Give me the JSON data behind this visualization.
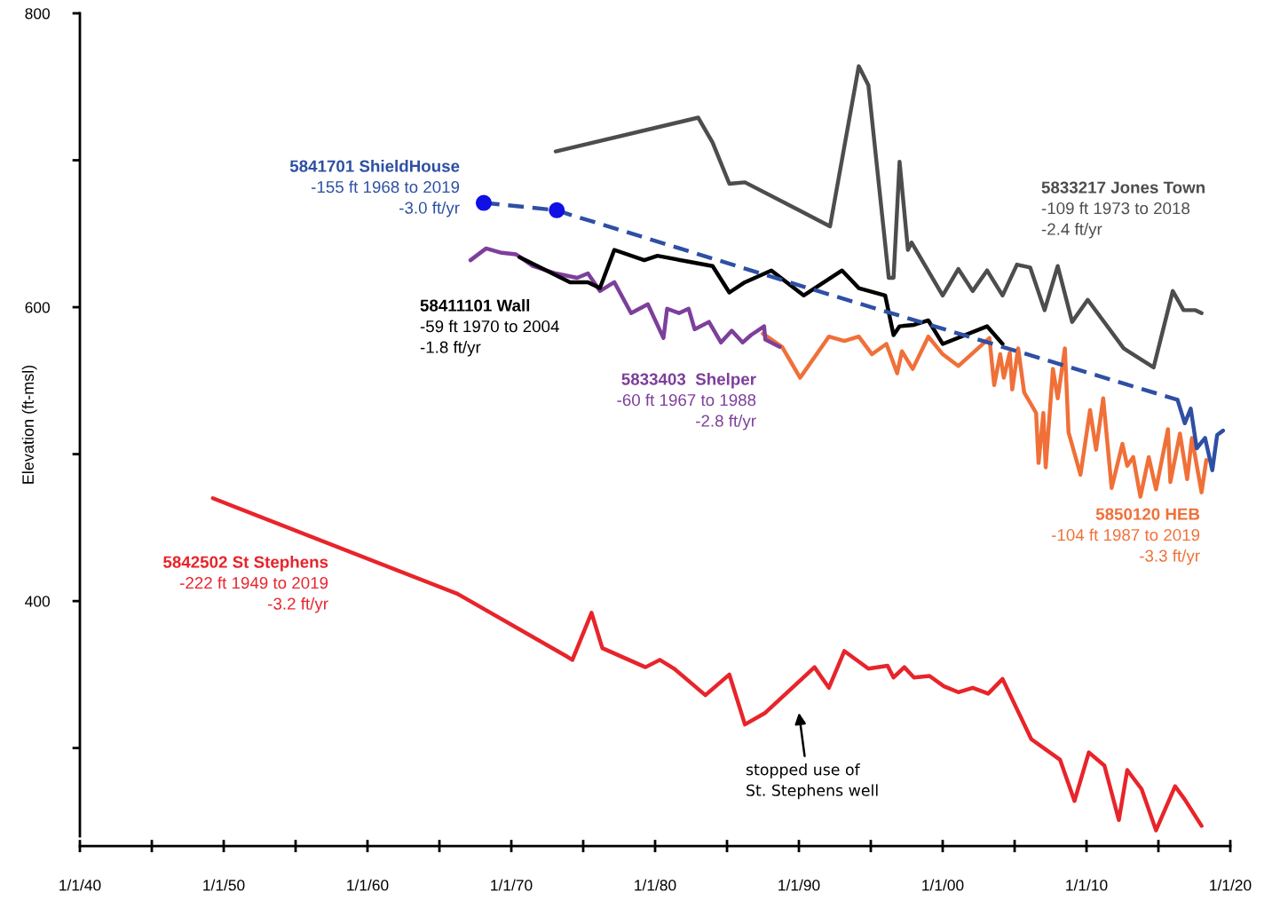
{
  "chart_data": {
    "type": "line",
    "ylabel": "Elevation (ft-msl)",
    "xlim": [
      "1940-01-01",
      "2020-01-01"
    ],
    "xticks": [
      {
        "value": "1940-01-01",
        "label": "1/1/40"
      },
      {
        "value": "1945-01-01",
        "label": null
      },
      {
        "value": "1950-01-01",
        "label": "1/1/50"
      },
      {
        "value": "1955-01-01",
        "label": null
      },
      {
        "value": "1960-01-01",
        "label": "1/1/60"
      },
      {
        "value": "1965-01-01",
        "label": null
      },
      {
        "value": "1970-01-01",
        "label": "1/1/70"
      },
      {
        "value": "1975-01-01",
        "label": null
      },
      {
        "value": "1980-01-01",
        "label": "1/1/80"
      },
      {
        "value": "1985-01-01",
        "label": null
      },
      {
        "value": "1990-01-01",
        "label": "1/1/90"
      },
      {
        "value": "1995-01-01",
        "label": null
      },
      {
        "value": "2000-01-01",
        "label": "1/1/00"
      },
      {
        "value": "2005-01-01",
        "label": null
      },
      {
        "value": "2010-01-01",
        "label": "1/1/10"
      },
      {
        "value": "2015-01-01",
        "label": null
      },
      {
        "value": "2020-01-01",
        "label": "1/1/20"
      }
    ],
    "ylim": [
      240,
      800
    ],
    "yticks": [
      {
        "value": 300,
        "label": null
      },
      400,
      {
        "value": 500,
        "label": null
      },
      600,
      {
        "value": 700,
        "label": null
      },
      800
    ],
    "grid": false,
    "legend": false,
    "annotations": [
      "stopped use of\nSt. Stephens well"
    ],
    "series": [
      {
        "name": "5842502 St Stephens\n-222 ft 1949 to 2019\n-3.2 ft/yr",
        "color": "#e8242b",
        "x": [
          "1949-04",
          "1966-04",
          "1973-12",
          "1974-04",
          "1975-08",
          "1976-05",
          "1979-05",
          "1980-05",
          "1981-05",
          "1983-07",
          "1985-03",
          "1986-04",
          "1987-09",
          "1991-02",
          "1992-02",
          "1993-03",
          "1994-11",
          "1996-03",
          "1996-08",
          "1997-05",
          "1998-01",
          "1999-02",
          "2000-02",
          "2001-02",
          "2002-02",
          "2003-03",
          "2004-03",
          "2006-03",
          "2008-03",
          "2009-03",
          "2010-03",
          "2011-04",
          "2012-04",
          "2012-11",
          "2013-11",
          "2014-11",
          "2016-03",
          "2016-11",
          "2018-01"
        ],
        "values": [
          470,
          405,
          362,
          360,
          392,
          368,
          355,
          360,
          354,
          336,
          350,
          316,
          324,
          355,
          341,
          366,
          354,
          356,
          348,
          355,
          348,
          349,
          342,
          338,
          341,
          337,
          347,
          306,
          292,
          264,
          297,
          288,
          251,
          285,
          272,
          244,
          274,
          265,
          247
        ]
      },
      {
        "name": "5841701 ShieldHouse\n-155 ft 1968 to 2019\n-3.0 ft/yr",
        "color": "#2e4fa3",
        "line_style": "dashed",
        "x": [
          "1968-02",
          "1973-03",
          "1974-02",
          "1991-01",
          "2004-03",
          "2016-05"
        ],
        "values": [
          671,
          666,
          663,
          612,
          573,
          537
        ]
      },
      {
        "type": "scatter",
        "marker": "circle",
        "color": "#1010e6",
        "x": [
          "1968-02",
          "1973-03"
        ],
        "values": [
          671,
          666
        ]
      },
      {
        "color": "#2e4fa3",
        "x": [
          "2016-05",
          "2016-11",
          "2017-04",
          "2017-09",
          "2018-04",
          "2018-10",
          "2019-02",
          "2019-07"
        ],
        "values": [
          537,
          521,
          531,
          504,
          511,
          489,
          513,
          516
        ]
      },
      {
        "name": "58411101 Wall\n-59 ft 1970 to 2004\n-1.8 ft/yr",
        "color": "#000000",
        "x": [
          "1970-08",
          "1974-02",
          "1975-05",
          "1976-03",
          "1977-03",
          "1979-04",
          "1980-03",
          "1982-05",
          "1984-01",
          "1985-03",
          "1986-04",
          "1988-02",
          "1990-05",
          "1993-01",
          "1994-03",
          "1996-01",
          "1996-08",
          "1997-01",
          "1998-01",
          "1999-01",
          "2000-01",
          "2003-02",
          "2004-03"
        ],
        "values": [
          634,
          617,
          617,
          613,
          639,
          632,
          635,
          631,
          628,
          610,
          617,
          625,
          608,
          625,
          613,
          608,
          581,
          587,
          588,
          591,
          575,
          587,
          575
        ]
      },
      {
        "name": "5833403  Shelper\n-60 ft 1967 to 1988\n-2.8 ft/yr",
        "color": "#7d3f9b",
        "x": [
          "1967-03",
          "1968-04",
          "1969-05",
          "1970-05",
          "1971-07",
          "1973-02",
          "1974-08",
          "1975-05",
          "1976-03",
          "1977-03",
          "1978-05",
          "1979-07",
          "1980-08",
          "1980-11",
          "1981-09",
          "1982-05",
          "1982-10",
          "1983-10",
          "1984-08",
          "1985-05",
          "1986-02",
          "1986-09",
          "1987-08",
          "1987-09",
          "1988-09"
        ],
        "values": [
          632,
          640,
          637,
          636,
          628,
          623,
          620,
          623,
          611,
          617,
          596,
          602,
          579,
          599,
          596,
          599,
          585,
          590,
          576,
          584,
          576,
          581,
          587,
          578,
          573
        ]
      },
      {
        "name": "5850120 HEB\n-104 ft 1987 to 2019\n-3.3 ft/yr",
        "color": "#f07038",
        "x": [
          "1987-07",
          "1988-11",
          "1990-02",
          "1992-02",
          "1993-03",
          "1994-03",
          "1995-02",
          "1996-02",
          "1996-11",
          "1997-03",
          "1997-12",
          "1999-01",
          "2000-01",
          "2001-02",
          "2003-04",
          "2003-08",
          "2004-01",
          "2004-04",
          "2004-09",
          "2004-11",
          "2005-04",
          "2005-09",
          "2006-07",
          "2006-09",
          "2007-01",
          "2007-03",
          "2007-09",
          "2008-01",
          "2008-07",
          "2008-10",
          "2009-08",
          "2010-04",
          "2010-09",
          "2011-03",
          "2011-10",
          "2012-07",
          "2012-11",
          "2013-04",
          "2013-10",
          "2014-05",
          "2014-11",
          "2015-09",
          "2015-11",
          "2016-07",
          "2017-01",
          "2017-05",
          "2018-01",
          "2018-05"
        ],
        "values": [
          582,
          573,
          552,
          580,
          577,
          580,
          568,
          575,
          555,
          570,
          558,
          580,
          568,
          560,
          579,
          547,
          568,
          552,
          569,
          544,
          572,
          542,
          528,
          494,
          528,
          491,
          558,
          538,
          572,
          515,
          486,
          530,
          503,
          538,
          477,
          507,
          492,
          498,
          471,
          498,
          476,
          517,
          481,
          514,
          483,
          511,
          474,
          496
        ]
      },
      {
        "name": "5833217 Jones Town\n-109 ft 1973 to 2018\n-2.4 ft/yr",
        "color": "#4d4d4d",
        "x": [
          "1973-02",
          "1983-01",
          "1984-01",
          "1985-03",
          "1986-04",
          "1990-01",
          "1992-03",
          "1994-03",
          "1994-11",
          "1996-04",
          "1996-08",
          "1997-01",
          "1997-08",
          "1997-11",
          "2000-01",
          "2001-02",
          "2002-02",
          "2003-02",
          "2004-03",
          "2005-03",
          "2006-02",
          "2007-02",
          "2008-01",
          "2009-01",
          "2010-02",
          "2012-08",
          "2014-09",
          "2016-01",
          "2016-10",
          "2017-08",
          "2018-01"
        ],
        "values": [
          706,
          729,
          712,
          684,
          685,
          666,
          655,
          764,
          751,
          620,
          620,
          699,
          639,
          644,
          608,
          626,
          611,
          625,
          608,
          629,
          627,
          598,
          628,
          590,
          605,
          572,
          559,
          611,
          598,
          598,
          596
        ]
      }
    ]
  }
}
